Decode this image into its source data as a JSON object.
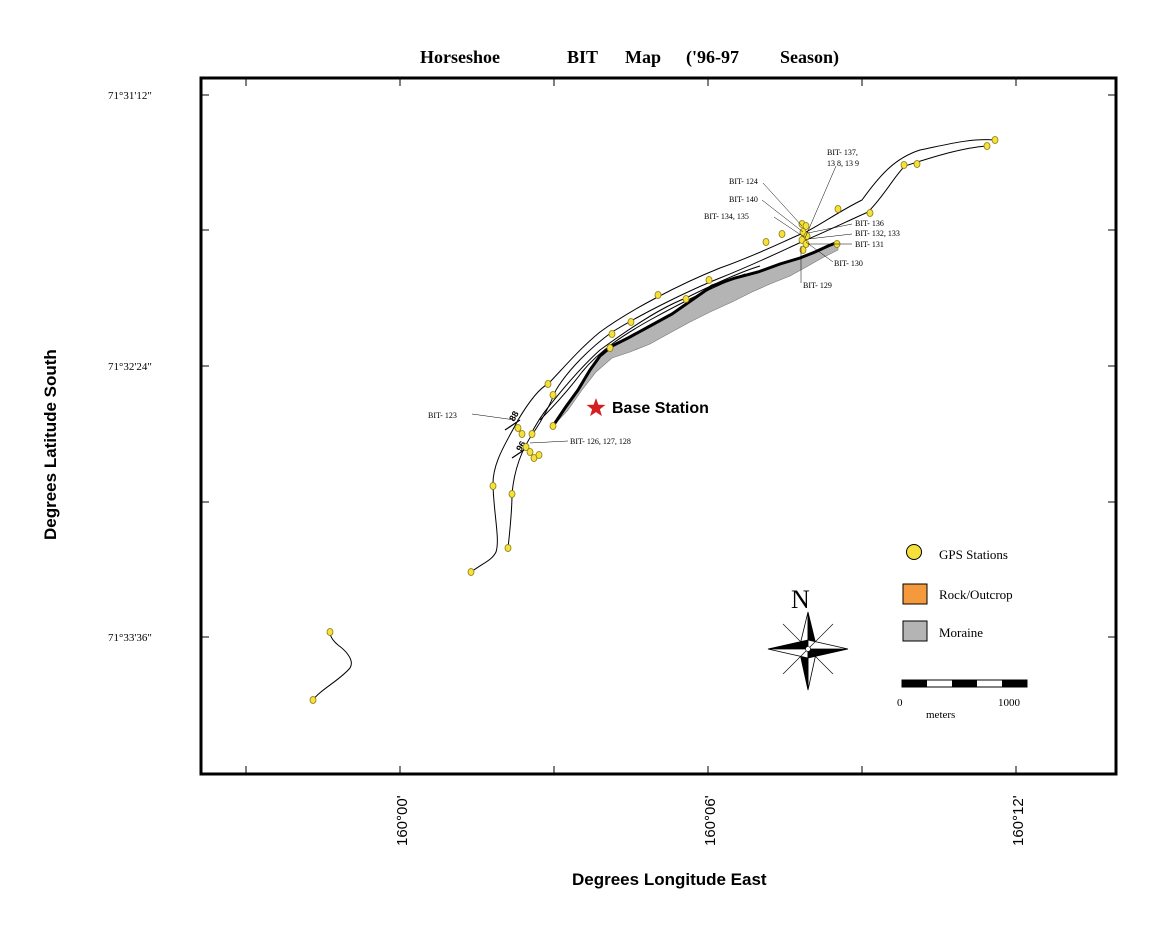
{
  "title": {
    "words": [
      "Horseshoe",
      "BIT",
      "Map",
      "('96-97",
      "Season)"
    ]
  },
  "axes": {
    "x_title": "Degrees Longitude East",
    "y_title": "Degrees Latitude South",
    "lat_ticks": [
      "71°31'12\"",
      "71°32'24\"",
      "71°33'36\""
    ],
    "lon_ticks": [
      "160°00'",
      "160°06'",
      "160°12'"
    ]
  },
  "station_labels": {
    "bit_123": "BIT- 123",
    "bit_126": "BIT- 126, 127, 128",
    "bit_124": "BIT- 124",
    "bit_140": "BIT- 140",
    "bit_134": "BIT- 134, 135",
    "bit_137_a": "BIT- 137,",
    "bit_137_b": "13 8, 13 9",
    "bit_136": "BIT- 136",
    "bit_132": "BIT- 132, 133",
    "bit_131": "BIT- 131",
    "bit_130": "BIT- 130",
    "bit_129": "BIT- 129"
  },
  "contour_labels": {
    "upper": "88",
    "lower": "96"
  },
  "base_station": {
    "label": "Base Station",
    "color": "#d42020"
  },
  "legend": {
    "gps": {
      "label": "GPS Stations",
      "color": "#f6e03a"
    },
    "rock": {
      "label": "Rock/Outcrop",
      "color": "#f59a3c"
    },
    "moraine": {
      "label": "Moraine",
      "color": "#b4b4b4"
    }
  },
  "scale_bar": {
    "start": "0",
    "end": "1000",
    "unit": "meters"
  },
  "north_arrow": {
    "letter": "N"
  }
}
